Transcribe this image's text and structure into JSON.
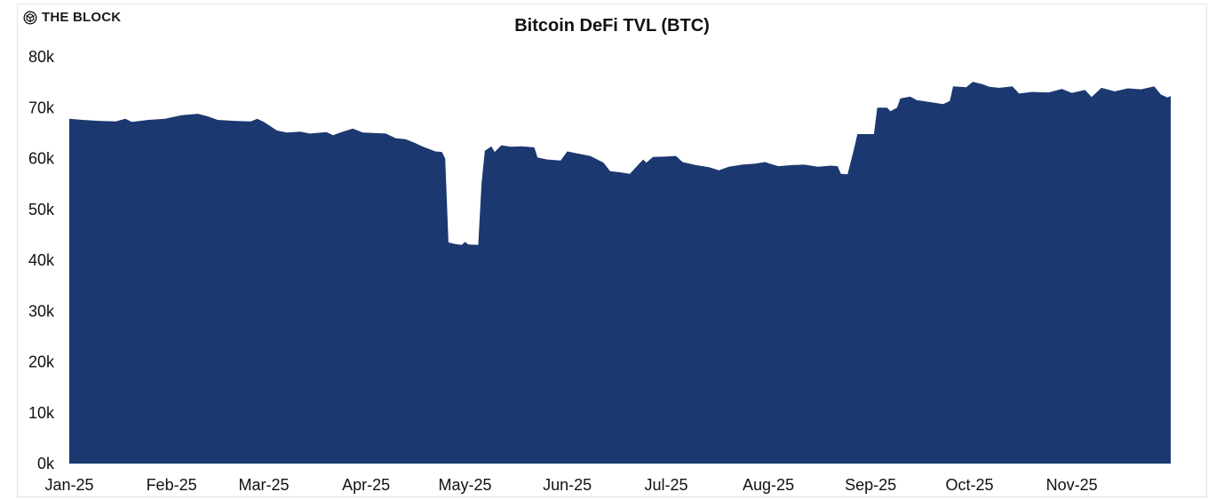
{
  "brand": {
    "name": "THE BLOCK",
    "icon": "the-block-cube-icon"
  },
  "chart_data": {
    "type": "area",
    "title": "Bitcoin DeFi TVL (BTC)",
    "xlabel": "",
    "ylabel": "",
    "color": "#1c3870",
    "grid": false,
    "legend": "none",
    "ylim": [
      0,
      80000
    ],
    "xlim": [
      "2025-01-01",
      "2025-12-01"
    ],
    "y_ticks": [
      0,
      10000,
      20000,
      30000,
      40000,
      50000,
      60000,
      70000,
      80000
    ],
    "y_tick_labels": [
      "0k",
      "10k",
      "20k",
      "30k",
      "40k",
      "50k",
      "60k",
      "70k",
      "80k"
    ],
    "x_ticks": [
      "2025-01-01",
      "2025-02-01",
      "2025-03-01",
      "2025-04-01",
      "2025-05-01",
      "2025-06-01",
      "2025-07-01",
      "2025-08-01",
      "2025-09-01",
      "2025-10-01",
      "2025-11-01"
    ],
    "x_tick_labels": [
      "Jan-25",
      "Feb-25",
      "Mar-25",
      "Apr-25",
      "May-25",
      "Jun-25",
      "Jul-25",
      "Aug-25",
      "Sep-25",
      "Oct-25",
      "Nov-25"
    ],
    "series": [
      {
        "name": "",
        "points": [
          [
            "2025-01-01",
            67800
          ],
          [
            "2025-01-05",
            67600
          ],
          [
            "2025-01-10",
            67400
          ],
          [
            "2025-01-15",
            67300
          ],
          [
            "2025-01-18",
            67800
          ],
          [
            "2025-01-20",
            67200
          ],
          [
            "2025-01-25",
            67600
          ],
          [
            "2025-01-30",
            67800
          ],
          [
            "2025-02-04",
            68500
          ],
          [
            "2025-02-09",
            68800
          ],
          [
            "2025-02-12",
            68300
          ],
          [
            "2025-02-15",
            67600
          ],
          [
            "2025-02-20",
            67400
          ],
          [
            "2025-02-25",
            67300
          ],
          [
            "2025-02-27",
            67800
          ],
          [
            "2025-03-01",
            67200
          ],
          [
            "2025-03-05",
            65500
          ],
          [
            "2025-03-08",
            65100
          ],
          [
            "2025-03-12",
            65300
          ],
          [
            "2025-03-15",
            64900
          ],
          [
            "2025-03-20",
            65200
          ],
          [
            "2025-03-22",
            64600
          ],
          [
            "2025-03-25",
            65300
          ],
          [
            "2025-03-28",
            65900
          ],
          [
            "2025-03-31",
            65100
          ],
          [
            "2025-04-04",
            65000
          ],
          [
            "2025-04-07",
            64900
          ],
          [
            "2025-04-10",
            64000
          ],
          [
            "2025-04-13",
            63800
          ],
          [
            "2025-04-16",
            63000
          ],
          [
            "2025-04-18",
            62400
          ],
          [
            "2025-04-20",
            61900
          ],
          [
            "2025-04-22",
            61400
          ],
          [
            "2025-04-24",
            61300
          ],
          [
            "2025-04-25",
            60000
          ],
          [
            "2025-04-26",
            43500
          ],
          [
            "2025-04-28",
            43200
          ],
          [
            "2025-04-30",
            43000
          ],
          [
            "2025-05-01",
            43600
          ],
          [
            "2025-05-02",
            43100
          ],
          [
            "2025-05-05",
            43000
          ],
          [
            "2025-05-06",
            55000
          ],
          [
            "2025-05-07",
            61500
          ],
          [
            "2025-05-09",
            62400
          ],
          [
            "2025-05-10",
            61300
          ],
          [
            "2025-05-12",
            62600
          ],
          [
            "2025-05-15",
            62300
          ],
          [
            "2025-05-18",
            62400
          ],
          [
            "2025-05-22",
            62200
          ],
          [
            "2025-05-23",
            60200
          ],
          [
            "2025-05-26",
            59800
          ],
          [
            "2025-05-30",
            59600
          ],
          [
            "2025-06-01",
            61400
          ],
          [
            "2025-06-04",
            61000
          ],
          [
            "2025-06-08",
            60500
          ],
          [
            "2025-06-12",
            59200
          ],
          [
            "2025-06-14",
            57500
          ],
          [
            "2025-06-17",
            57300
          ],
          [
            "2025-06-20",
            57000
          ],
          [
            "2025-06-24",
            59800
          ],
          [
            "2025-06-25",
            59200
          ],
          [
            "2025-06-27",
            60300
          ],
          [
            "2025-07-01",
            60400
          ],
          [
            "2025-07-04",
            60500
          ],
          [
            "2025-07-06",
            59300
          ],
          [
            "2025-07-10",
            58700
          ],
          [
            "2025-07-14",
            58300
          ],
          [
            "2025-07-17",
            57700
          ],
          [
            "2025-07-20",
            58400
          ],
          [
            "2025-07-24",
            58800
          ],
          [
            "2025-07-28",
            59000
          ],
          [
            "2025-07-31",
            59300
          ],
          [
            "2025-08-01",
            59100
          ],
          [
            "2025-08-04",
            58500
          ],
          [
            "2025-08-08",
            58700
          ],
          [
            "2025-08-12",
            58800
          ],
          [
            "2025-08-16",
            58400
          ],
          [
            "2025-08-20",
            58600
          ],
          [
            "2025-08-22",
            58500
          ],
          [
            "2025-08-23",
            57000
          ],
          [
            "2025-08-25",
            56900
          ],
          [
            "2025-08-27",
            62000
          ],
          [
            "2025-08-28",
            64800
          ],
          [
            "2025-09-02",
            64800
          ],
          [
            "2025-09-03",
            70000
          ],
          [
            "2025-09-06",
            70000
          ],
          [
            "2025-09-07",
            69300
          ],
          [
            "2025-09-09",
            70000
          ],
          [
            "2025-09-10",
            71800
          ],
          [
            "2025-09-13",
            72200
          ],
          [
            "2025-09-15",
            71500
          ],
          [
            "2025-09-18",
            71200
          ],
          [
            "2025-09-20",
            71000
          ],
          [
            "2025-09-23",
            70700
          ],
          [
            "2025-09-25",
            71300
          ],
          [
            "2025-09-26",
            74200
          ],
          [
            "2025-09-28",
            74100
          ],
          [
            "2025-09-30",
            74000
          ],
          [
            "2025-10-02",
            75100
          ],
          [
            "2025-10-05",
            74600
          ],
          [
            "2025-10-07",
            74100
          ],
          [
            "2025-10-10",
            73900
          ],
          [
            "2025-10-14",
            74200
          ],
          [
            "2025-10-16",
            72800
          ],
          [
            "2025-10-20",
            73100
          ],
          [
            "2025-10-25",
            73000
          ],
          [
            "2025-10-29",
            73700
          ],
          [
            "2025-11-01",
            72900
          ],
          [
            "2025-11-05",
            73500
          ],
          [
            "2025-11-07",
            72100
          ],
          [
            "2025-11-10",
            73900
          ],
          [
            "2025-11-14",
            73200
          ],
          [
            "2025-11-18",
            73800
          ],
          [
            "2025-11-22",
            73600
          ],
          [
            "2025-11-26",
            74200
          ],
          [
            "2025-11-28",
            72600
          ],
          [
            "2025-11-30",
            72000
          ],
          [
            "2025-12-02",
            72300
          ]
        ]
      }
    ]
  }
}
